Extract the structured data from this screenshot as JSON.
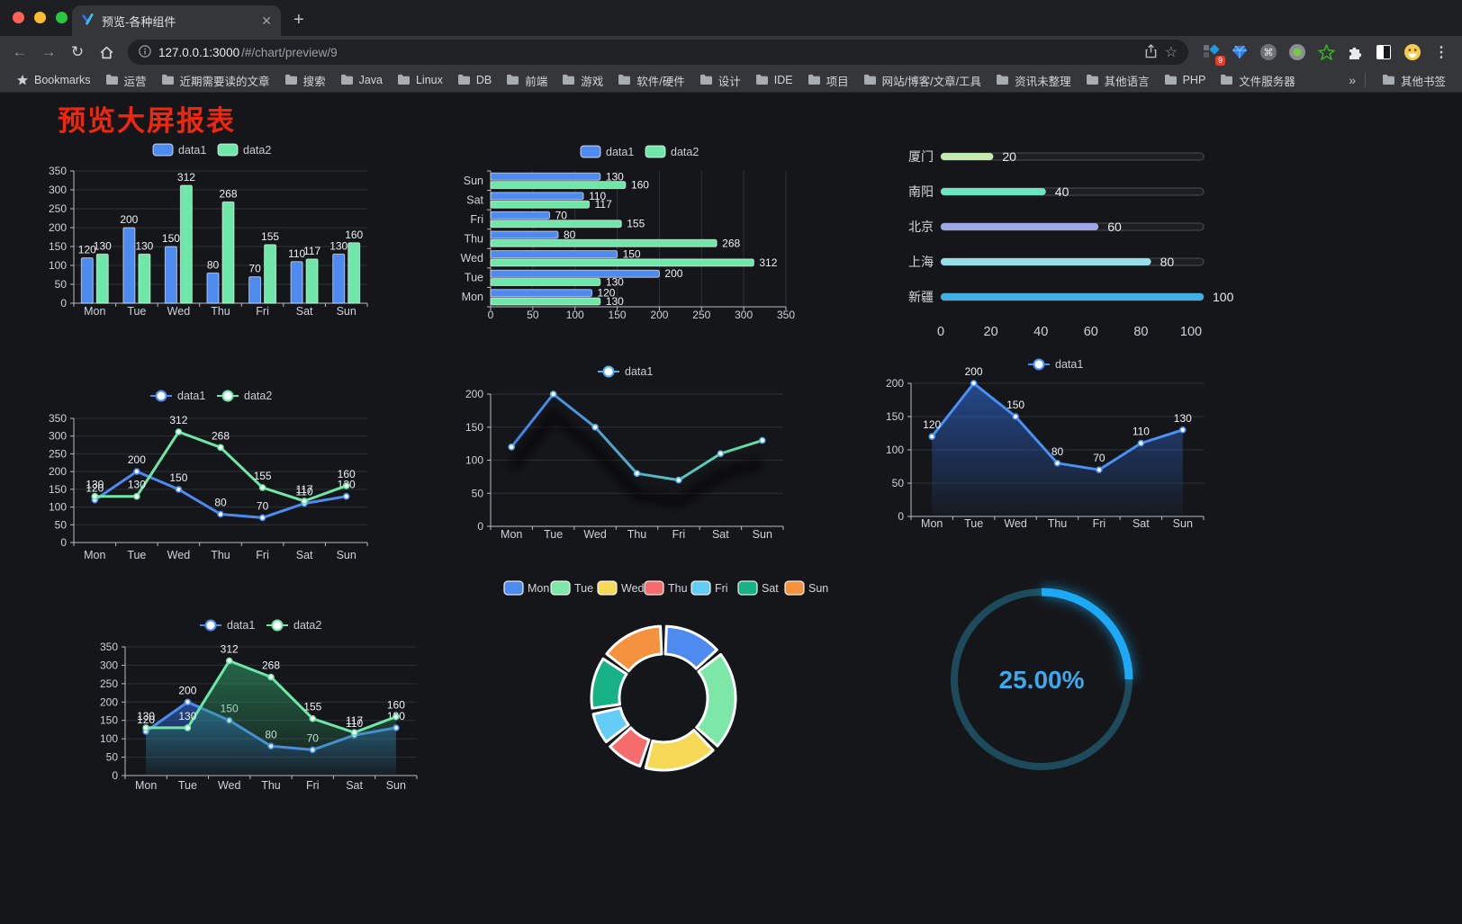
{
  "browser": {
    "tab_title": "预览-各种组件",
    "close_glyph": "✕",
    "newtab_glyph": "+",
    "back_glyph": "←",
    "forward_glyph": "→",
    "reload_glyph": "↻",
    "url_host": "127.0.0.1:3000",
    "url_path": "/#/chart/preview/9",
    "extension_badge": "9",
    "bookmarks_label": "Bookmarks",
    "bookmark_folders": [
      "运营",
      "近期需要读的文章",
      "搜索",
      "Java",
      "Linux",
      "DB",
      "前端",
      "游戏",
      "软件/硬件",
      "设计",
      "IDE",
      "项目",
      "网站/博客/文章/工具",
      "资讯未整理",
      "其他语言",
      "PHP",
      "文件服务器"
    ],
    "overflow_chevron": "»",
    "other_bookmarks": "其他书签"
  },
  "page": {
    "title": "预览大屏报表",
    "title_color": "#f0270e"
  },
  "chart_data": [
    {
      "type": "bar",
      "categories": [
        "Mon",
        "Tue",
        "Wed",
        "Thu",
        "Fri",
        "Sat",
        "Sun"
      ],
      "series": [
        {
          "name": "data1",
          "color": "#4d8bf0",
          "values": [
            120,
            200,
            150,
            80,
            70,
            110,
            130
          ]
        },
        {
          "name": "data2",
          "color": "#6fe7a8",
          "values": [
            130,
            130,
            312,
            268,
            155,
            117,
            160
          ]
        }
      ],
      "ylim": [
        0,
        350
      ],
      "ytick_step": 50,
      "labels": true,
      "legend_position": "top"
    },
    {
      "type": "bar-horizontal",
      "categories": [
        "Mon",
        "Tue",
        "Wed",
        "Thu",
        "Fri",
        "Sat",
        "Sun"
      ],
      "series": [
        {
          "name": "data1",
          "color": "#4d8bf0",
          "values": [
            120,
            200,
            150,
            80,
            70,
            110,
            130
          ]
        },
        {
          "name": "data2",
          "color": "#6fe7a8",
          "values": [
            130,
            130,
            312,
            268,
            155,
            117,
            160
          ]
        }
      ],
      "xlim": [
        0,
        350
      ],
      "xtick_step": 50,
      "labels": true,
      "legend_position": "top"
    },
    {
      "type": "progress",
      "rows": [
        {
          "label": "厦门",
          "value": 20,
          "color": "#c4ebad"
        },
        {
          "label": "南阳",
          "value": 40,
          "color": "#6be6c1"
        },
        {
          "label": "北京",
          "value": 60,
          "color": "#a0a7e6"
        },
        {
          "label": "上海",
          "value": 80,
          "color": "#96dee8"
        },
        {
          "label": "新疆",
          "value": 100,
          "color": "#3fb1e3"
        }
      ],
      "xlim": [
        0,
        100
      ],
      "xticks": [
        0,
        20,
        40,
        60,
        80,
        100
      ]
    },
    {
      "type": "line",
      "categories": [
        "Mon",
        "Tue",
        "Wed",
        "Thu",
        "Fri",
        "Sat",
        "Sun"
      ],
      "series": [
        {
          "name": "data1",
          "color": "#4d8bf0",
          "values": [
            120,
            200,
            150,
            80,
            70,
            110,
            130
          ]
        },
        {
          "name": "data2",
          "color": "#6fe7a8",
          "values": [
            130,
            130,
            312,
            268,
            155,
            117,
            160
          ]
        }
      ],
      "ylim": [
        0,
        350
      ],
      "ytick_step": 50,
      "labels": true,
      "legend_position": "top"
    },
    {
      "type": "line",
      "categories": [
        "Mon",
        "Tue",
        "Wed",
        "Thu",
        "Fri",
        "Sat",
        "Sun"
      ],
      "series": [
        {
          "name": "data1",
          "gradient": [
            "#3f7ef0",
            "#62e2a4"
          ],
          "legend_color": "#55aef0",
          "shadow": true,
          "values": [
            120,
            200,
            150,
            80,
            70,
            110,
            130
          ]
        }
      ],
      "ylim": [
        0,
        200
      ],
      "ytick_step": 50,
      "labels": false,
      "legend_position": "top"
    },
    {
      "type": "area",
      "categories": [
        "Mon",
        "Tue",
        "Wed",
        "Thu",
        "Fri",
        "Sat",
        "Sun"
      ],
      "series": [
        {
          "name": "data1",
          "color": "#4a90f5",
          "area": "#2f6bd8",
          "values": [
            120,
            200,
            150,
            80,
            70,
            110,
            130
          ]
        }
      ],
      "ylim": [
        0,
        200
      ],
      "ytick_step": 50,
      "labels": true,
      "legend_position": "top"
    },
    {
      "type": "area",
      "categories": [
        "Mon",
        "Tue",
        "Wed",
        "Thu",
        "Fri",
        "Sat",
        "Sun"
      ],
      "series": [
        {
          "name": "data1",
          "color": "#4d8bf0",
          "area": "#2f6bd8",
          "values": [
            120,
            200,
            150,
            80,
            70,
            110,
            130
          ]
        },
        {
          "name": "data2",
          "color": "#6fe7a8",
          "area": "#2f9e68",
          "values": [
            130,
            130,
            312,
            268,
            155,
            117,
            160
          ]
        }
      ],
      "ylim": [
        0,
        350
      ],
      "ytick_step": 50,
      "labels": true,
      "legend_position": "top"
    },
    {
      "type": "pie",
      "categories": [
        "Mon",
        "Tue",
        "Wed",
        "Thu",
        "Fri",
        "Sat",
        "Sun"
      ],
      "values": [
        120,
        200,
        150,
        80,
        70,
        110,
        130
      ],
      "colors": [
        "#4d8bf0",
        "#7ce7a6",
        "#f7d958",
        "#f56c6c",
        "#64cdf7",
        "#16b285",
        "#f5923d"
      ],
      "legend_position": "top"
    },
    {
      "type": "gauge",
      "value": 25,
      "label": "25.00%",
      "color": "#1ba9f5",
      "track_color": "#1d4b5c",
      "text_color": "#3ea8ea"
    }
  ]
}
